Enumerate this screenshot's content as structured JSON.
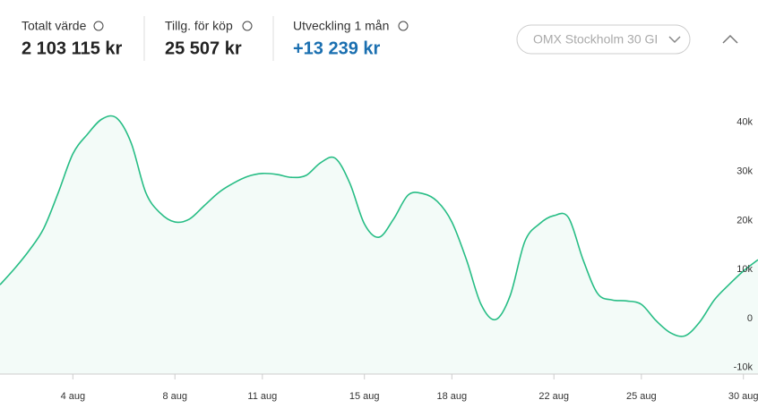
{
  "stats": [
    {
      "label": "Totalt värde",
      "value": "2 103 115 kr"
    },
    {
      "label": "Tillg. för köp",
      "value": "25 507 kr"
    },
    {
      "label": "Utveckling 1 mån",
      "value": "+13 239 kr"
    }
  ],
  "dropdown": "OMX Stockholm 30 GI",
  "chart_data": {
    "type": "line",
    "color": "#27bd85",
    "fill": "#f3fbf8",
    "categories": [
      null,
      null,
      null,
      null,
      null,
      "4 aug",
      null,
      null,
      null,
      null,
      null,
      null,
      "8 aug",
      null,
      null,
      null,
      null,
      null,
      "11 aug",
      null,
      null,
      null,
      null,
      null,
      null,
      "15 aug",
      null,
      null,
      null,
      null,
      null,
      "18 aug",
      null,
      null,
      null,
      null,
      null,
      null,
      "22 aug",
      null,
      null,
      null,
      null,
      null,
      "25 aug",
      null,
      null,
      null,
      null,
      null,
      null,
      "30 aug",
      null
    ],
    "values": [
      6900,
      10200,
      13900,
      18400,
      25700,
      33600,
      37600,
      40700,
      40900,
      35800,
      25700,
      21500,
      19700,
      20300,
      23000,
      25700,
      27600,
      29000,
      29600,
      29400,
      28800,
      29200,
      31800,
      32700,
      27600,
      19300,
      16600,
      20300,
      25200,
      25500,
      23900,
      19700,
      12000,
      2900,
      -200,
      4700,
      15700,
      19300,
      21000,
      20600,
      12000,
      5100,
      3800,
      3600,
      2900,
      -400,
      -2900,
      -3500,
      -700,
      3800,
      6900,
      9700,
      12000
    ],
    "ylim": [
      -12000,
      48000
    ],
    "yticks": [
      {
        "value": -10000,
        "label": "-10k"
      },
      0,
      {
        "value": 10000,
        "label": "10k"
      },
      {
        "value": 20000,
        "label": "20k"
      },
      {
        "value": 30000,
        "label": "30k"
      },
      {
        "value": 40000,
        "label": "40k"
      }
    ]
  }
}
